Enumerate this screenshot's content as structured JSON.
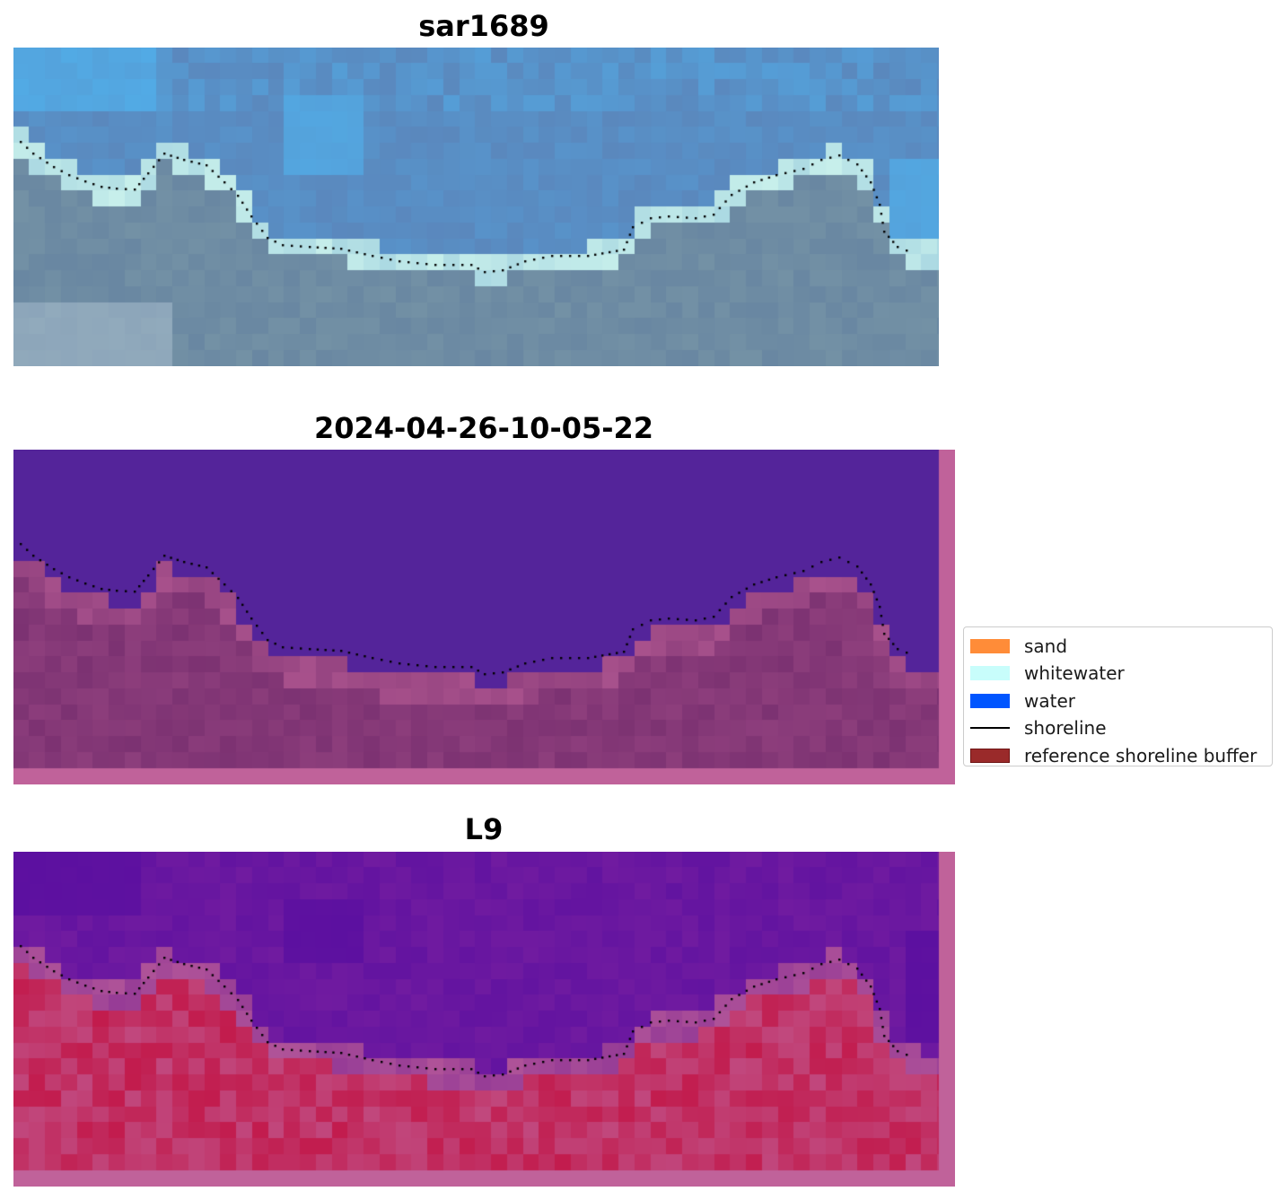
{
  "panels": [
    {
      "title": "sar1689",
      "kind": "rgb"
    },
    {
      "title": "2024-04-26-10-05-22",
      "kind": "classification"
    },
    {
      "title": "L9",
      "kind": "index"
    }
  ],
  "legend": {
    "items": [
      {
        "label": "sand",
        "color": "#ff8c38",
        "type": "patch"
      },
      {
        "label": "whitewater",
        "color": "#c8fdfb",
        "type": "patch"
      },
      {
        "label": "water",
        "color": "#0055ff",
        "type": "patch"
      },
      {
        "label": "shoreline",
        "color": "#000000",
        "type": "line"
      },
      {
        "label": "reference shoreline buffer",
        "color": "#9a2a2a",
        "edge": "#6e1414",
        "type": "patch"
      }
    ]
  },
  "colors": {
    "buffer_overlay": "#c0629a",
    "water_class": "#54249a",
    "land_class": "#7c3272",
    "index_low": "#5a0fa0",
    "index_high": "#c20a3a"
  }
}
